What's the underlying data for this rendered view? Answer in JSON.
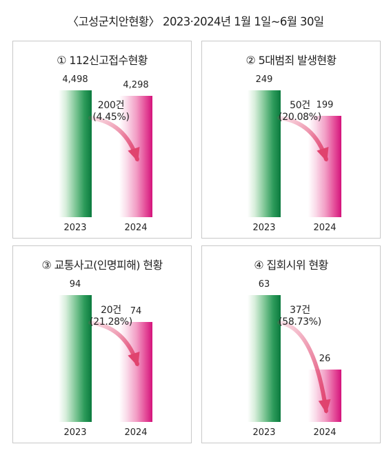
{
  "title": "〈고성군치안현황〉 2023·2024년 1월 1일~6월 30일",
  "colors": {
    "year_2023": "#0b7a3e",
    "year_2024": "#d4127b",
    "arrow": "#e0436e",
    "border": "#c8c8c8"
  },
  "chart_data": [
    {
      "type": "bar",
      "title": "① 112신고접수현황",
      "categories": [
        "2023",
        "2024"
      ],
      "values": [
        4498,
        4298
      ],
      "value_labels": [
        "4,498",
        "4,298"
      ],
      "change": "200건",
      "change_pct": "(4.45%)",
      "ylim": [
        0,
        4498
      ]
    },
    {
      "type": "bar",
      "title": "② 5대범죄 발생현황",
      "categories": [
        "2023",
        "2024"
      ],
      "values": [
        249,
        199
      ],
      "value_labels": [
        "249",
        "199"
      ],
      "change": "50건",
      "change_pct": "(20.08%)",
      "ylim": [
        0,
        249
      ]
    },
    {
      "type": "bar",
      "title": "③ 교통사고(인명피해) 현황",
      "categories": [
        "2023",
        "2024"
      ],
      "values": [
        94,
        74
      ],
      "value_labels": [
        "94",
        "74"
      ],
      "change": "20건",
      "change_pct": "(21.28%)",
      "ylim": [
        0,
        94
      ]
    },
    {
      "type": "bar",
      "title": "④ 집회시위 현황",
      "categories": [
        "2023",
        "2024"
      ],
      "values": [
        63,
        26
      ],
      "value_labels": [
        "63",
        "26"
      ],
      "change": "37건",
      "change_pct": "(58.73%)",
      "ylim": [
        0,
        63
      ]
    }
  ]
}
